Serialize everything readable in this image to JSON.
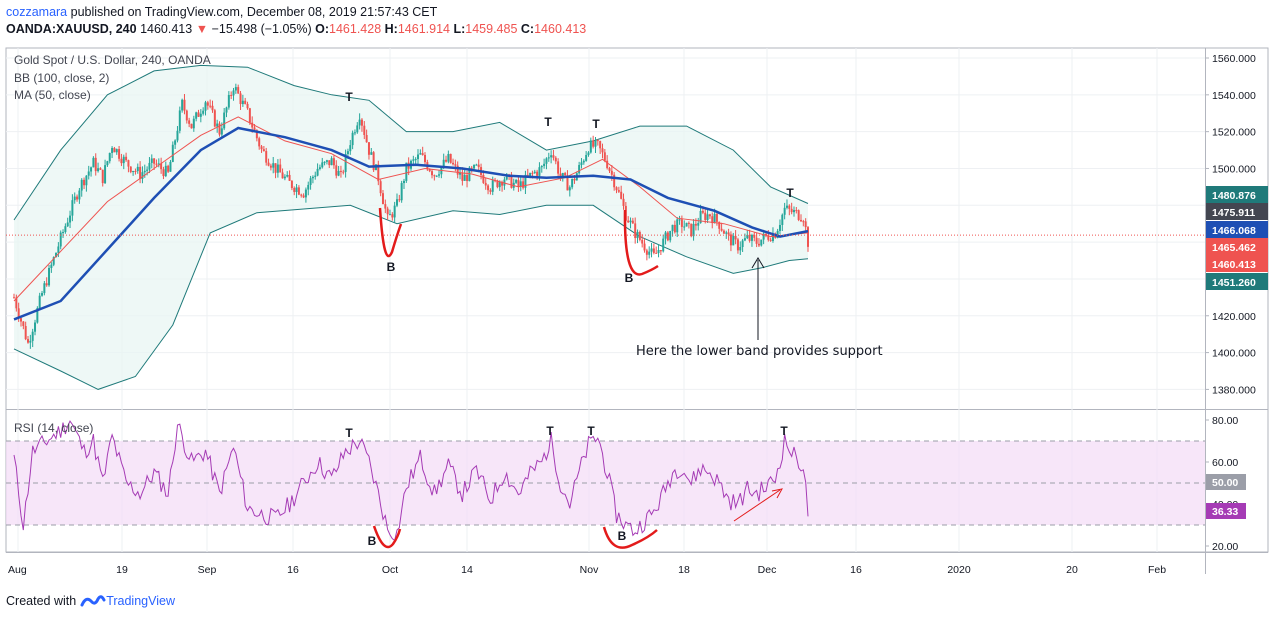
{
  "header": {
    "user": "cozzamara",
    "published": " published on TradingView.com, December 08, 2019 21:57:43 CET",
    "symbol": "OANDA:XAUUSD, 240",
    "last": "1460.413",
    "change": "−15.498 (−1.05%)",
    "o_label": "O:",
    "o_value": "1461.428",
    "h_label": "H:",
    "h_value": "1461.914",
    "l_label": "L:",
    "l_value": "1459.485",
    "c_label": "C:",
    "c_value": "1460.413"
  },
  "footer": {
    "created_with": "Created with",
    "brand": "TradingView"
  },
  "colors": {
    "up": "#26a69a",
    "down": "#ef5350",
    "ma": "#1e4fb4",
    "bb_basis": "#ef5350",
    "bb_band": "#1f7a7a",
    "rsi": "#a53bb5",
    "rsi_fill": "#f3dcf7",
    "annot": "#e31b1b"
  },
  "chart_data": [
    {
      "type": "candlestick",
      "title": "Gold Spot / U.S. Dollar, 240, OANDA",
      "indicators": [
        "BB (100, close, 2)",
        "MA (50, close)"
      ],
      "ylim": [
        1370,
        1565
      ],
      "y_ticks": [
        "1560.000",
        "1540.000",
        "1520.000",
        "1500.000",
        "1420.000",
        "1400.000",
        "1380.000"
      ],
      "x_ticks": [
        "Aug",
        "19",
        "Sep",
        "16",
        "Oct",
        "14",
        "Nov",
        "18",
        "Dec",
        "16",
        "2020",
        "20",
        "Feb"
      ],
      "price_tags": [
        {
          "label": "1480.876",
          "value": 1480.876,
          "color": "#1f7a7a"
        },
        {
          "label": "1475.911",
          "value": 1475.911,
          "color": "#434651"
        },
        {
          "label": "1466.068",
          "value": 1466.068,
          "color": "#1e4fb4"
        },
        {
          "label": "1465.462",
          "value": 1465.462,
          "color": "#ef5350"
        },
        {
          "label": "1460.413",
          "value": 1460.413,
          "color": "#ef5350"
        },
        {
          "label": "1451.260",
          "value": 1451.26,
          "color": "#1f7a7a"
        }
      ],
      "close_line": 1463.8,
      "series": {
        "close": [
          {
            "t": 0,
            "v": 1430
          },
          {
            "t": 3,
            "v": 1405
          },
          {
            "t": 6,
            "v": 1432
          },
          {
            "t": 10,
            "v": 1462
          },
          {
            "t": 14,
            "v": 1490
          },
          {
            "t": 17,
            "v": 1503
          },
          {
            "t": 19,
            "v": 1495
          },
          {
            "t": 21,
            "v": 1513
          },
          {
            "t": 24,
            "v": 1503
          },
          {
            "t": 27,
            "v": 1497
          },
          {
            "t": 30,
            "v": 1503
          },
          {
            "t": 33,
            "v": 1497
          },
          {
            "t": 36,
            "v": 1535
          },
          {
            "t": 38,
            "v": 1523
          },
          {
            "t": 41,
            "v": 1537
          },
          {
            "t": 44,
            "v": 1520
          },
          {
            "t": 47,
            "v": 1545
          },
          {
            "t": 50,
            "v": 1530
          },
          {
            "t": 53,
            "v": 1510
          },
          {
            "t": 56,
            "v": 1500
          },
          {
            "t": 59,
            "v": 1492
          },
          {
            "t": 62,
            "v": 1487
          },
          {
            "t": 65,
            "v": 1500
          },
          {
            "t": 68,
            "v": 1504
          },
          {
            "t": 70,
            "v": 1495
          },
          {
            "t": 72,
            "v": 1515
          },
          {
            "t": 74,
            "v": 1530
          },
          {
            "t": 76,
            "v": 1510
          },
          {
            "t": 78,
            "v": 1495
          },
          {
            "t": 80,
            "v": 1472
          },
          {
            "t": 82,
            "v": 1480
          },
          {
            "t": 84,
            "v": 1500
          },
          {
            "t": 87,
            "v": 1507
          },
          {
            "t": 90,
            "v": 1497
          },
          {
            "t": 93,
            "v": 1505
          },
          {
            "t": 96,
            "v": 1494
          },
          {
            "t": 99,
            "v": 1500
          },
          {
            "t": 102,
            "v": 1490
          },
          {
            "t": 105,
            "v": 1495
          },
          {
            "t": 108,
            "v": 1490
          },
          {
            "t": 111,
            "v": 1497
          },
          {
            "t": 113,
            "v": 1500
          },
          {
            "t": 115,
            "v": 1510
          },
          {
            "t": 117,
            "v": 1496
          },
          {
            "t": 119,
            "v": 1490
          },
          {
            "t": 121,
            "v": 1500
          },
          {
            "t": 123,
            "v": 1512
          },
          {
            "t": 125,
            "v": 1512
          },
          {
            "t": 127,
            "v": 1503
          },
          {
            "t": 129,
            "v": 1490
          },
          {
            "t": 131,
            "v": 1475
          },
          {
            "t": 133,
            "v": 1465
          },
          {
            "t": 135,
            "v": 1458
          },
          {
            "t": 137,
            "v": 1452
          },
          {
            "t": 139,
            "v": 1460
          },
          {
            "t": 141,
            "v": 1468
          },
          {
            "t": 143,
            "v": 1470
          },
          {
            "t": 145,
            "v": 1466
          },
          {
            "t": 147,
            "v": 1474
          },
          {
            "t": 149,
            "v": 1475
          },
          {
            "t": 151,
            "v": 1470
          },
          {
            "t": 153,
            "v": 1462
          },
          {
            "t": 155,
            "v": 1458
          },
          {
            "t": 157,
            "v": 1462
          },
          {
            "t": 159,
            "v": 1460
          },
          {
            "t": 161,
            "v": 1463
          },
          {
            "t": 163,
            "v": 1465
          },
          {
            "t": 165,
            "v": 1478
          },
          {
            "t": 167,
            "v": 1476
          },
          {
            "t": 169,
            "v": 1474
          },
          {
            "t": 170,
            "v": 1460
          }
        ],
        "ma50": [
          {
            "t": 0,
            "v": 1418
          },
          {
            "t": 10,
            "v": 1428
          },
          {
            "t": 20,
            "v": 1456
          },
          {
            "t": 30,
            "v": 1484
          },
          {
            "t": 40,
            "v": 1510
          },
          {
            "t": 48,
            "v": 1522
          },
          {
            "t": 58,
            "v": 1517
          },
          {
            "t": 68,
            "v": 1510
          },
          {
            "t": 76,
            "v": 1501
          },
          {
            "t": 86,
            "v": 1502
          },
          {
            "t": 96,
            "v": 1500
          },
          {
            "t": 106,
            "v": 1496
          },
          {
            "t": 114,
            "v": 1495
          },
          {
            "t": 124,
            "v": 1496
          },
          {
            "t": 132,
            "v": 1494
          },
          {
            "t": 140,
            "v": 1484
          },
          {
            "t": 150,
            "v": 1477
          },
          {
            "t": 158,
            "v": 1468
          },
          {
            "t": 164,
            "v": 1463
          },
          {
            "t": 170,
            "v": 1466
          }
        ],
        "bb_upper": [
          {
            "t": 0,
            "v": 1472
          },
          {
            "t": 10,
            "v": 1510
          },
          {
            "t": 20,
            "v": 1540
          },
          {
            "t": 30,
            "v": 1553
          },
          {
            "t": 40,
            "v": 1556
          },
          {
            "t": 50,
            "v": 1555
          },
          {
            "t": 60,
            "v": 1545
          },
          {
            "t": 68,
            "v": 1540
          },
          {
            "t": 76,
            "v": 1537
          },
          {
            "t": 84,
            "v": 1520
          },
          {
            "t": 94,
            "v": 1520
          },
          {
            "t": 104,
            "v": 1525
          },
          {
            "t": 114,
            "v": 1510
          },
          {
            "t": 124,
            "v": 1515
          },
          {
            "t": 134,
            "v": 1523
          },
          {
            "t": 144,
            "v": 1523
          },
          {
            "t": 154,
            "v": 1510
          },
          {
            "t": 162,
            "v": 1490
          },
          {
            "t": 170,
            "v": 1481
          }
        ],
        "bb_lower": [
          {
            "t": 0,
            "v": 1402
          },
          {
            "t": 10,
            "v": 1390
          },
          {
            "t": 18,
            "v": 1380
          },
          {
            "t": 26,
            "v": 1387
          },
          {
            "t": 34,
            "v": 1415
          },
          {
            "t": 42,
            "v": 1465
          },
          {
            "t": 52,
            "v": 1476
          },
          {
            "t": 62,
            "v": 1478
          },
          {
            "t": 72,
            "v": 1480
          },
          {
            "t": 82,
            "v": 1470
          },
          {
            "t": 94,
            "v": 1477
          },
          {
            "t": 104,
            "v": 1475
          },
          {
            "t": 114,
            "v": 1480
          },
          {
            "t": 124,
            "v": 1480
          },
          {
            "t": 134,
            "v": 1463
          },
          {
            "t": 144,
            "v": 1452
          },
          {
            "t": 154,
            "v": 1443
          },
          {
            "t": 160,
            "v": 1446
          },
          {
            "t": 166,
            "v": 1450
          },
          {
            "t": 170,
            "v": 1451
          }
        ],
        "bb_basis": [
          {
            "t": 0,
            "v": 1428
          },
          {
            "t": 10,
            "v": 1455
          },
          {
            "t": 20,
            "v": 1482
          },
          {
            "t": 30,
            "v": 1500
          },
          {
            "t": 40,
            "v": 1518
          },
          {
            "t": 48,
            "v": 1528
          },
          {
            "t": 58,
            "v": 1515
          },
          {
            "t": 68,
            "v": 1508
          },
          {
            "t": 78,
            "v": 1494
          },
          {
            "t": 88,
            "v": 1500
          },
          {
            "t": 98,
            "v": 1497
          },
          {
            "t": 108,
            "v": 1490
          },
          {
            "t": 118,
            "v": 1495
          },
          {
            "t": 126,
            "v": 1505
          },
          {
            "t": 134,
            "v": 1490
          },
          {
            "t": 142,
            "v": 1473
          },
          {
            "t": 152,
            "v": 1470
          },
          {
            "t": 162,
            "v": 1463
          },
          {
            "t": 170,
            "v": 1465
          }
        ]
      },
      "annotations": [
        {
          "label": "T",
          "t": 75,
          "v": 1538
        },
        {
          "label": "B",
          "t": 83,
          "v": 1451
        },
        {
          "label": "T",
          "t": 118,
          "v": 1522
        },
        {
          "label": "T",
          "t": 128,
          "v": 1521
        },
        {
          "label": "B",
          "t": 134,
          "v": 1446
        },
        {
          "label": "T",
          "t": 170,
          "v": 1484
        }
      ],
      "note": "Here the lower band provides support"
    },
    {
      "type": "line",
      "title": "RSI (14, close)",
      "ylim": [
        15,
        85
      ],
      "y_ticks": [
        "80.00",
        "60.00",
        "40.00",
        "20.00"
      ],
      "band": [
        30,
        70
      ],
      "midline": 50,
      "value_tags": [
        {
          "label": "50.00",
          "value": 50,
          "color": "#9b9ea8"
        },
        {
          "label": "36.33",
          "value": 36.33,
          "color": "#a53bb5"
        }
      ],
      "series": [
        {
          "t": 0,
          "v": 62
        },
        {
          "t": 2,
          "v": 30
        },
        {
          "t": 4,
          "v": 65
        },
        {
          "t": 7,
          "v": 70
        },
        {
          "t": 10,
          "v": 75
        },
        {
          "t": 12,
          "v": 80
        },
        {
          "t": 15,
          "v": 65
        },
        {
          "t": 17,
          "v": 70
        },
        {
          "t": 19,
          "v": 50
        },
        {
          "t": 21,
          "v": 72
        },
        {
          "t": 24,
          "v": 50
        },
        {
          "t": 27,
          "v": 45
        },
        {
          "t": 30,
          "v": 55
        },
        {
          "t": 33,
          "v": 45
        },
        {
          "t": 35,
          "v": 78
        },
        {
          "t": 38,
          "v": 60
        },
        {
          "t": 41,
          "v": 65
        },
        {
          "t": 44,
          "v": 45
        },
        {
          "t": 47,
          "v": 67
        },
        {
          "t": 50,
          "v": 38
        },
        {
          "t": 53,
          "v": 35
        },
        {
          "t": 56,
          "v": 33
        },
        {
          "t": 59,
          "v": 40
        },
        {
          "t": 62,
          "v": 50
        },
        {
          "t": 65,
          "v": 60
        },
        {
          "t": 68,
          "v": 52
        },
        {
          "t": 71,
          "v": 65
        },
        {
          "t": 74,
          "v": 70
        },
        {
          "t": 76,
          "v": 60
        },
        {
          "t": 78,
          "v": 45
        },
        {
          "t": 80,
          "v": 28
        },
        {
          "t": 82,
          "v": 26
        },
        {
          "t": 84,
          "v": 48
        },
        {
          "t": 87,
          "v": 62
        },
        {
          "t": 90,
          "v": 45
        },
        {
          "t": 93,
          "v": 58
        },
        {
          "t": 96,
          "v": 45
        },
        {
          "t": 99,
          "v": 56
        },
        {
          "t": 102,
          "v": 42
        },
        {
          "t": 105,
          "v": 55
        },
        {
          "t": 108,
          "v": 45
        },
        {
          "t": 111,
          "v": 56
        },
        {
          "t": 113,
          "v": 60
        },
        {
          "t": 115,
          "v": 70
        },
        {
          "t": 117,
          "v": 50
        },
        {
          "t": 119,
          "v": 40
        },
        {
          "t": 121,
          "v": 55
        },
        {
          "t": 123,
          "v": 68
        },
        {
          "t": 125,
          "v": 72
        },
        {
          "t": 127,
          "v": 55
        },
        {
          "t": 129,
          "v": 35
        },
        {
          "t": 131,
          "v": 30
        },
        {
          "t": 133,
          "v": 27
        },
        {
          "t": 135,
          "v": 32
        },
        {
          "t": 137,
          "v": 36
        },
        {
          "t": 139,
          "v": 45
        },
        {
          "t": 141,
          "v": 55
        },
        {
          "t": 143,
          "v": 58
        },
        {
          "t": 145,
          "v": 50
        },
        {
          "t": 147,
          "v": 57
        },
        {
          "t": 149,
          "v": 55
        },
        {
          "t": 151,
          "v": 50
        },
        {
          "t": 153,
          "v": 42
        },
        {
          "t": 155,
          "v": 40
        },
        {
          "t": 157,
          "v": 47
        },
        {
          "t": 159,
          "v": 45
        },
        {
          "t": 161,
          "v": 48
        },
        {
          "t": 163,
          "v": 52
        },
        {
          "t": 165,
          "v": 70
        },
        {
          "t": 167,
          "v": 63
        },
        {
          "t": 169,
          "v": 58
        },
        {
          "t": 170,
          "v": 36
        }
      ],
      "annotations": [
        {
          "label": "T",
          "t": 75,
          "v": 72
        },
        {
          "label": "B",
          "t": 82,
          "v": 22
        },
        {
          "label": "T",
          "t": 118,
          "v": 74
        },
        {
          "label": "T",
          "t": 127,
          "v": 74
        },
        {
          "label": "B",
          "t": 134,
          "v": 24
        },
        {
          "label": "T",
          "t": 167,
          "v": 74
        }
      ]
    }
  ]
}
